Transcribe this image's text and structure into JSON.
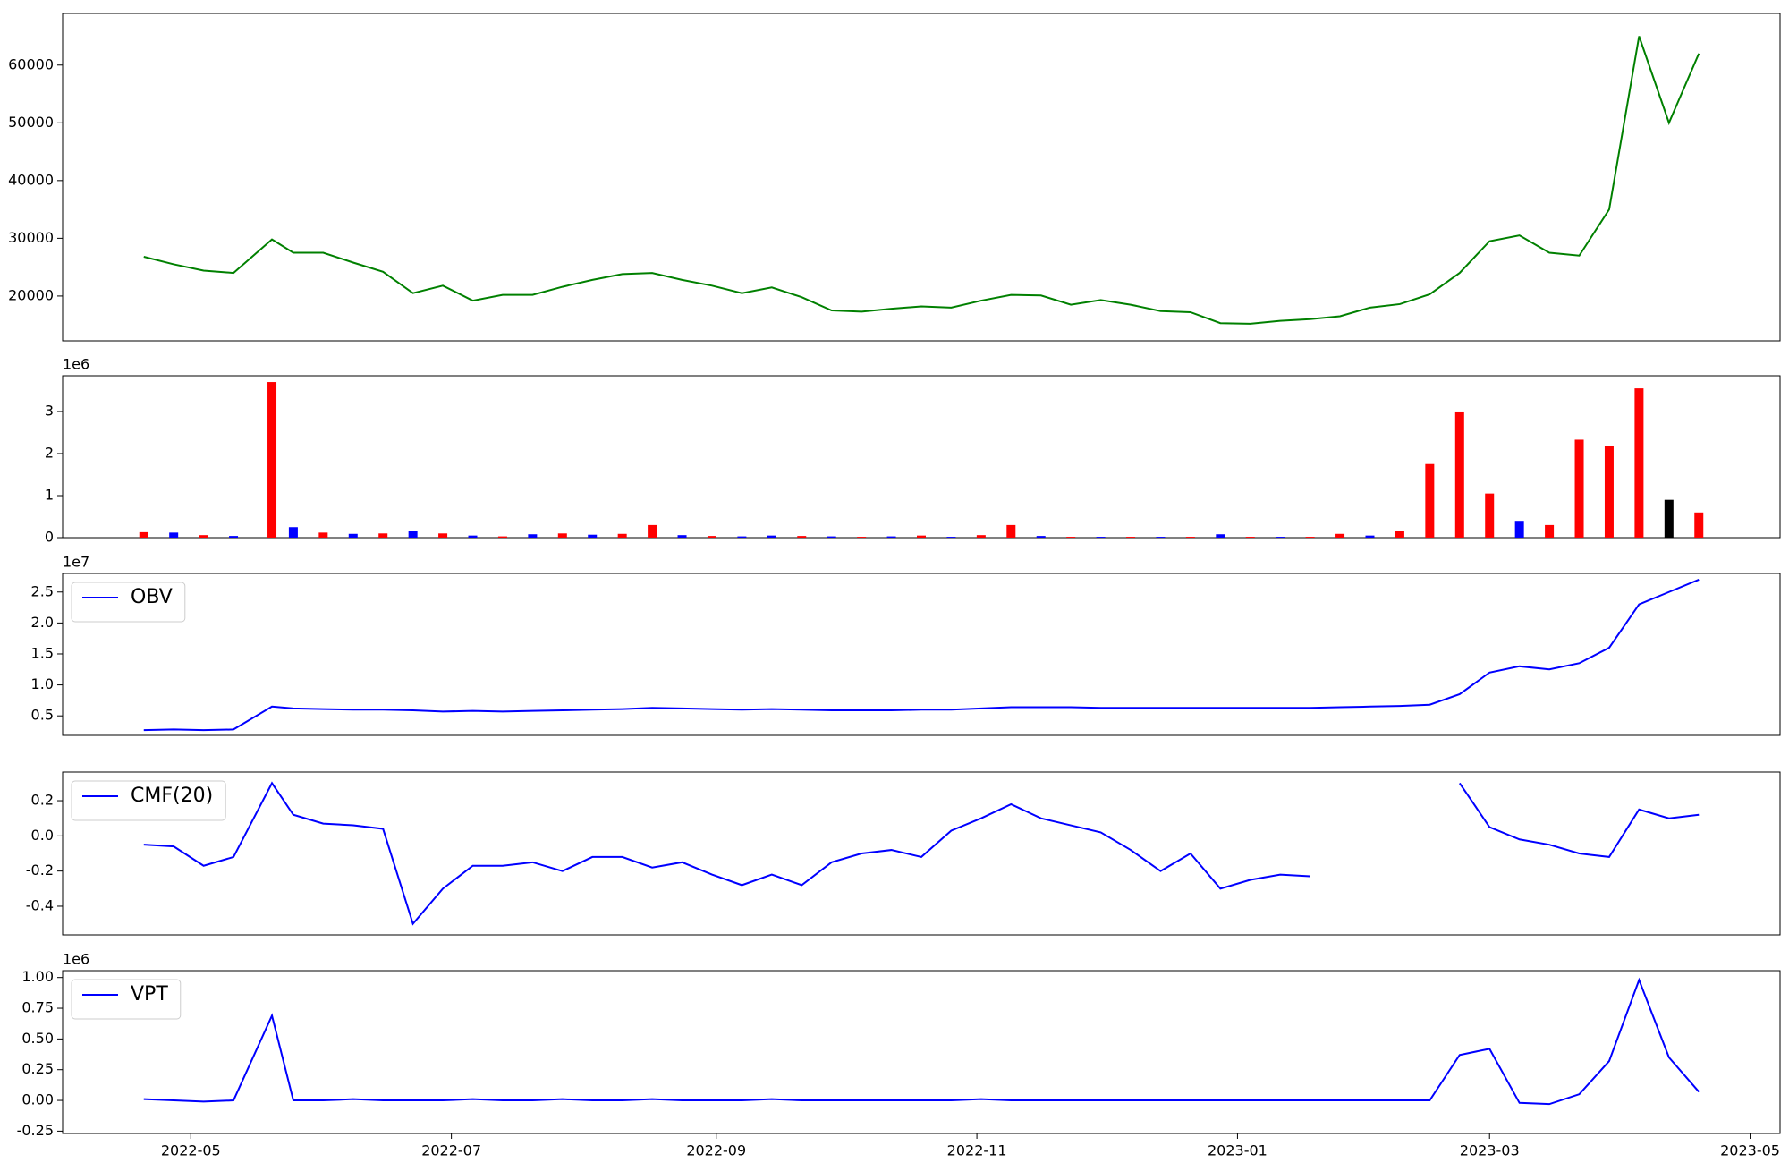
{
  "chart_data": [
    {
      "type": "line",
      "color": "#008000",
      "x": [
        "2022-04-20",
        "2022-04-27",
        "2022-05-04",
        "2022-05-11",
        "2022-05-20",
        "2022-05-25",
        "2022-06-01",
        "2022-06-08",
        "2022-06-15",
        "2022-06-22",
        "2022-06-29",
        "2022-07-06",
        "2022-07-13",
        "2022-07-20",
        "2022-07-27",
        "2022-08-03",
        "2022-08-10",
        "2022-08-17",
        "2022-08-24",
        "2022-08-31",
        "2022-09-07",
        "2022-09-14",
        "2022-09-21",
        "2022-09-28",
        "2022-10-05",
        "2022-10-12",
        "2022-10-19",
        "2022-10-26",
        "2022-11-02",
        "2022-11-09",
        "2022-11-16",
        "2022-11-23",
        "2022-11-30",
        "2022-12-07",
        "2022-12-14",
        "2022-12-21",
        "2022-12-28",
        "2023-01-04",
        "2023-01-11",
        "2023-01-18",
        "2023-01-25",
        "2023-02-01",
        "2023-02-08",
        "2023-02-15",
        "2023-02-22",
        "2023-03-01",
        "2023-03-08",
        "2023-03-15",
        "2023-03-22",
        "2023-03-29",
        "2023-04-05",
        "2023-04-12",
        "2023-04-19"
      ],
      "values": [
        26800,
        25500,
        24400,
        24000,
        29800,
        27500,
        27500,
        25800,
        24200,
        20500,
        21800,
        19200,
        20200,
        20200,
        21600,
        22800,
        23800,
        24000,
        22800,
        21800,
        20500,
        21500,
        19800,
        17500,
        17300,
        17800,
        18200,
        18000,
        19200,
        20200,
        20100,
        18500,
        19300,
        18500,
        17400,
        17200,
        15300,
        15200,
        15700,
        16000,
        16500,
        18000,
        18600,
        20300,
        24000,
        29500,
        30500,
        27500,
        27000,
        35000,
        65000,
        50000,
        62000
      ],
      "xlim": [
        "2022-04-01",
        "2023-05-08"
      ],
      "ylim": [
        12240,
        68950
      ],
      "yticks": [
        20000,
        30000,
        40000,
        50000,
        60000
      ]
    },
    {
      "type": "bar",
      "y_offset_label": "1e6",
      "x": [
        "2022-04-20",
        "2022-04-27",
        "2022-05-04",
        "2022-05-11",
        "2022-05-20",
        "2022-05-25",
        "2022-06-01",
        "2022-06-08",
        "2022-06-15",
        "2022-06-22",
        "2022-06-29",
        "2022-07-06",
        "2022-07-13",
        "2022-07-20",
        "2022-07-27",
        "2022-08-03",
        "2022-08-10",
        "2022-08-17",
        "2022-08-24",
        "2022-08-31",
        "2022-09-07",
        "2022-09-14",
        "2022-09-21",
        "2022-09-28",
        "2022-10-05",
        "2022-10-12",
        "2022-10-19",
        "2022-10-26",
        "2022-11-02",
        "2022-11-09",
        "2022-11-16",
        "2022-11-23",
        "2022-11-30",
        "2022-12-07",
        "2022-12-14",
        "2022-12-21",
        "2022-12-28",
        "2023-01-04",
        "2023-01-11",
        "2023-01-18",
        "2023-01-25",
        "2023-02-01",
        "2023-02-08",
        "2023-02-15",
        "2023-02-22",
        "2023-03-01",
        "2023-03-08",
        "2023-03-15",
        "2023-03-22",
        "2023-03-29",
        "2023-04-05",
        "2023-04-12",
        "2023-04-19"
      ],
      "values": [
        130000,
        120000,
        60000,
        40000,
        3700000,
        250000,
        120000,
        90000,
        100000,
        150000,
        100000,
        50000,
        30000,
        80000,
        100000,
        70000,
        90000,
        300000,
        60000,
        40000,
        30000,
        50000,
        40000,
        30000,
        20000,
        30000,
        50000,
        20000,
        60000,
        300000,
        40000,
        20000,
        20000,
        20000,
        20000,
        20000,
        80000,
        20000,
        20000,
        20000,
        90000,
        50000,
        150000,
        1750000,
        3000000,
        1050000,
        400000,
        300000,
        2330000,
        2180000,
        3550000,
        900000,
        600000
      ],
      "colors": [
        "red",
        "blue",
        "red",
        "blue",
        "red",
        "blue",
        "red",
        "blue",
        "red",
        "blue",
        "red",
        "blue",
        "red",
        "blue",
        "red",
        "blue",
        "red",
        "red",
        "blue",
        "red",
        "blue",
        "blue",
        "red",
        "blue",
        "red",
        "blue",
        "red",
        "blue",
        "red",
        "red",
        "blue",
        "red",
        "blue",
        "red",
        "blue",
        "red",
        "blue",
        "red",
        "blue",
        "red",
        "red",
        "blue",
        "red",
        "red",
        "red",
        "red",
        "blue",
        "red",
        "red",
        "red",
        "red",
        "black",
        "red"
      ],
      "xlim": [
        "2022-04-01",
        "2023-05-08"
      ],
      "ylim": [
        0,
        3850000
      ],
      "yticks": [
        0,
        {
          "value": 1000000,
          "label": "1"
        },
        {
          "value": 2000000,
          "label": "2"
        },
        {
          "value": 3000000,
          "label": "3"
        }
      ]
    },
    {
      "type": "line",
      "y_offset_label": "1e7",
      "legend": "upper left",
      "x": [
        "2022-04-20",
        "2022-04-27",
        "2022-05-04",
        "2022-05-11",
        "2022-05-20",
        "2022-05-25",
        "2022-06-01",
        "2022-06-08",
        "2022-06-15",
        "2022-06-22",
        "2022-06-29",
        "2022-07-06",
        "2022-07-13",
        "2022-07-20",
        "2022-07-27",
        "2022-08-03",
        "2022-08-10",
        "2022-08-17",
        "2022-08-24",
        "2022-08-31",
        "2022-09-07",
        "2022-09-14",
        "2022-09-21",
        "2022-09-28",
        "2022-10-05",
        "2022-10-12",
        "2022-10-19",
        "2022-10-26",
        "2022-11-02",
        "2022-11-09",
        "2022-11-16",
        "2022-11-23",
        "2022-11-30",
        "2022-12-07",
        "2022-12-14",
        "2022-12-21",
        "2022-12-28",
        "2023-01-04",
        "2023-01-11",
        "2023-01-18",
        "2023-01-25",
        "2023-02-01",
        "2023-02-08",
        "2023-02-15",
        "2023-02-22",
        "2023-03-01",
        "2023-03-08",
        "2023-03-15",
        "2023-03-22",
        "2023-03-29",
        "2023-04-05",
        "2023-04-12",
        "2023-04-19"
      ],
      "series": [
        {
          "name": "OBV",
          "color": "#0000ff",
          "values": [
            2700000,
            2800000,
            2700000,
            2800000,
            6500000,
            6200000,
            6100000,
            6000000,
            6000000,
            5900000,
            5700000,
            5800000,
            5700000,
            5800000,
            5900000,
            6000000,
            6100000,
            6300000,
            6200000,
            6100000,
            6000000,
            6100000,
            6000000,
            5900000,
            5900000,
            5900000,
            6000000,
            6000000,
            6200000,
            6400000,
            6400000,
            6400000,
            6300000,
            6300000,
            6300000,
            6300000,
            6300000,
            6300000,
            6300000,
            6300000,
            6400000,
            6500000,
            6600000,
            6800000,
            8500000,
            12000000,
            13000000,
            12500000,
            13500000,
            16000000,
            23000000,
            25000000,
            27000000
          ]
        }
      ],
      "xlim": [
        "2022-04-01",
        "2023-05-08"
      ],
      "ylim": [
        1850000,
        28000000
      ],
      "yticks": [
        {
          "value": 5000000,
          "label": "0.5"
        },
        {
          "value": 10000000,
          "label": "1.0"
        },
        {
          "value": 15000000,
          "label": "1.5"
        },
        {
          "value": 20000000,
          "label": "2.0"
        },
        {
          "value": 25000000,
          "label": "2.5"
        }
      ]
    },
    {
      "type": "line",
      "legend": "upper left",
      "x": [
        "2022-04-20",
        "2022-04-27",
        "2022-05-04",
        "2022-05-11",
        "2022-05-20",
        "2022-05-25",
        "2022-06-01",
        "2022-06-08",
        "2022-06-15",
        "2022-06-22",
        "2022-06-29",
        "2022-07-06",
        "2022-07-13",
        "2022-07-20",
        "2022-07-27",
        "2022-08-03",
        "2022-08-10",
        "2022-08-17",
        "2022-08-24",
        "2022-08-31",
        "2022-09-07",
        "2022-09-14",
        "2022-09-21",
        "2022-09-28",
        "2022-10-05",
        "2022-10-12",
        "2022-10-19",
        "2022-10-26",
        "2022-11-02",
        "2022-11-09",
        "2022-11-16",
        "2022-11-23",
        "2022-11-30",
        "2022-12-07",
        "2022-12-14",
        "2022-12-21",
        "2022-12-28",
        "2023-01-04",
        "2023-01-11",
        "2023-01-18",
        "2023-01-25",
        "2023-02-01",
        "2023-02-08",
        "2023-02-15",
        "2023-02-22",
        "2023-03-01",
        "2023-03-08",
        "2023-03-15",
        "2023-03-22",
        "2023-03-29",
        "2023-04-05",
        "2023-04-12",
        "2023-04-19"
      ],
      "series": [
        {
          "name": "CMF(20)",
          "color": "#0000ff",
          "values": [
            -0.05,
            -0.06,
            -0.17,
            -0.12,
            0.3,
            0.12,
            0.07,
            0.06,
            0.04,
            -0.5,
            -0.3,
            -0.17,
            -0.17,
            -0.15,
            -0.2,
            -0.12,
            -0.12,
            -0.18,
            -0.15,
            -0.22,
            -0.28,
            -0.22,
            -0.28,
            -0.15,
            -0.1,
            -0.08,
            -0.12,
            0.03,
            0.1,
            0.18,
            0.1,
            0.06,
            0.02,
            -0.08,
            -0.2,
            -0.1,
            -0.3,
            -0.25,
            -0.22,
            -0.23,
            null,
            null,
            null,
            null,
            0.3,
            0.05,
            -0.02,
            -0.05,
            -0.1,
            -0.12,
            0.15,
            0.1,
            0.12
          ]
        }
      ],
      "xlim": [
        "2022-04-01",
        "2023-05-08"
      ],
      "ylim": [
        -0.563,
        0.363
      ],
      "yticks": [
        -0.4,
        -0.2,
        {
          "value": 0,
          "label": "0.0"
        },
        0.2
      ]
    },
    {
      "type": "line",
      "y_offset_label": "1e6",
      "legend": "upper left",
      "x": [
        "2022-04-20",
        "2022-04-27",
        "2022-05-04",
        "2022-05-11",
        "2022-05-20",
        "2022-05-25",
        "2022-06-01",
        "2022-06-08",
        "2022-06-15",
        "2022-06-22",
        "2022-06-29",
        "2022-07-06",
        "2022-07-13",
        "2022-07-20",
        "2022-07-27",
        "2022-08-03",
        "2022-08-10",
        "2022-08-17",
        "2022-08-24",
        "2022-08-31",
        "2022-09-07",
        "2022-09-14",
        "2022-09-21",
        "2022-09-28",
        "2022-10-05",
        "2022-10-12",
        "2022-10-19",
        "2022-10-26",
        "2022-11-02",
        "2022-11-09",
        "2022-11-16",
        "2022-11-23",
        "2022-11-30",
        "2022-12-07",
        "2022-12-14",
        "2022-12-21",
        "2022-12-28",
        "2023-01-04",
        "2023-01-11",
        "2023-01-18",
        "2023-01-25",
        "2023-02-01",
        "2023-02-08",
        "2023-02-15",
        "2023-02-22",
        "2023-03-01",
        "2023-03-08",
        "2023-03-15",
        "2023-03-22",
        "2023-03-29",
        "2023-04-05",
        "2023-04-12",
        "2023-04-19"
      ],
      "series": [
        {
          "name": "VPT",
          "color": "#0000ff",
          "values": [
            10000,
            0,
            -10000,
            0,
            690000,
            0,
            0,
            10000,
            0,
            0,
            0,
            10000,
            0,
            0,
            10000,
            0,
            0,
            10000,
            0,
            0,
            0,
            10000,
            0,
            0,
            0,
            0,
            0,
            0,
            10000,
            0,
            0,
            0,
            0,
            0,
            0,
            0,
            0,
            0,
            0,
            0,
            0,
            0,
            0,
            0,
            370000,
            420000,
            -20000,
            -30000,
            50000,
            320000,
            980000,
            350000,
            70000
          ]
        }
      ],
      "xlim": [
        "2022-04-01",
        "2023-05-08"
      ],
      "ylim": [
        -269000,
        1056000
      ],
      "yticks": [
        {
          "value": -250000,
          "label": "-0.25"
        },
        {
          "value": 0,
          "label": "0.00"
        },
        {
          "value": 250000,
          "label": "0.25"
        },
        {
          "value": 500000,
          "label": "0.50"
        },
        {
          "value": 750000,
          "label": "0.75"
        },
        {
          "value": 1000000,
          "label": "1.00"
        }
      ],
      "xticks": [
        {
          "value": "2022-05-01",
          "label": "2022-05"
        },
        {
          "value": "2022-07-01",
          "label": "2022-07"
        },
        {
          "value": "2022-09-01",
          "label": "2022-09"
        },
        {
          "value": "2022-11-01",
          "label": "2022-11"
        },
        {
          "value": "2023-01-01",
          "label": "2023-01"
        },
        {
          "value": "2023-03-01",
          "label": "2023-03"
        },
        {
          "value": "2023-05-01",
          "label": "2023-05"
        }
      ]
    }
  ]
}
